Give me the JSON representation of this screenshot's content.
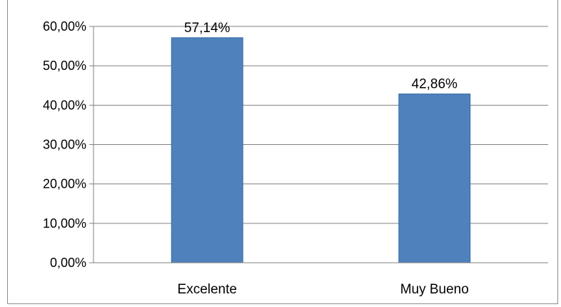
{
  "chart_data": {
    "type": "bar",
    "categories": [
      "Excelente",
      "Muy Bueno"
    ],
    "values": [
      57.14,
      42.86
    ],
    "data_labels": [
      "57,14%",
      "42,86%"
    ],
    "ylim": [
      0,
      60
    ],
    "yticks": [
      0,
      10,
      20,
      30,
      40,
      50,
      60
    ],
    "ytick_labels": [
      "0,00%",
      "10,00%",
      "20,00%",
      "30,00%",
      "40,00%",
      "50,00%",
      "60,00%"
    ],
    "grid": true,
    "legend": "none",
    "colors": {
      "bar": "#4f81bd",
      "bar_edge": "#3a6ea5",
      "grid": "#808080"
    }
  }
}
